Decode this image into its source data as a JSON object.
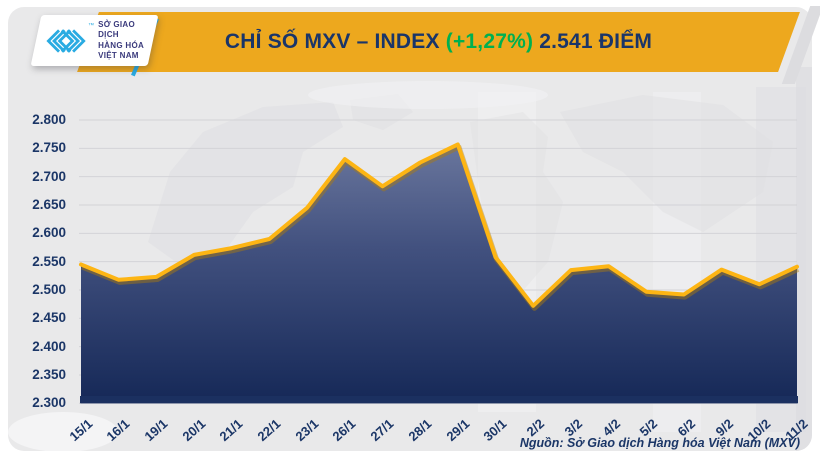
{
  "header": {
    "banner_color": "#EDA81E",
    "title_main": "CHỈ SỐ MXV – INDEX",
    "title_change": "(+1,27%)",
    "title_points": "2.541 ĐIỂM",
    "title_color": "#1A3569",
    "change_color": "#00B050",
    "logo": {
      "icon": "mxv-chevrons-icon",
      "tm": "™",
      "line1": "SỞ GIAO DỊCH",
      "line2": "HÀNG HÓA",
      "line3": "VIỆT NAM",
      "brand_cyan": "#29ABE2",
      "text_color": "#3A3A7C"
    }
  },
  "footer": {
    "source": "Nguồn: Sở Giao dịch Hàng hóa Việt Nam (MXV)"
  },
  "chart_data": {
    "type": "area",
    "title": "CHỈ SỐ MXV – INDEX (+1,27%) 2.541 ĐIỂM",
    "categories": [
      "15/1",
      "16/1",
      "19/1",
      "20/1",
      "21/1",
      "22/1",
      "23/1",
      "26/1",
      "27/1",
      "28/1",
      "29/1",
      "30/1",
      "2/2",
      "3/2",
      "4/2",
      "5/2",
      "6/2",
      "9/2",
      "10/2",
      "11/2"
    ],
    "values": [
      2545,
      2518,
      2523,
      2562,
      2574,
      2590,
      2645,
      2731,
      2683,
      2725,
      2757,
      2558,
      2472,
      2535,
      2542,
      2497,
      2492,
      2536,
      2510,
      2541
    ],
    "last_value_label": "2.541",
    "change_pct_label": "+1,27%",
    "ylim": [
      2300,
      2800
    ],
    "ytick_step": 50,
    "ytick_labels": [
      "2.800",
      "2.750",
      "2.700",
      "2.650",
      "2.600",
      "2.550",
      "2.500",
      "2.450",
      "2.400",
      "2.350",
      "2.300"
    ],
    "xlabel": "",
    "ylabel": "",
    "grid": "horizontal",
    "legend": "none",
    "gridline_color": "#d3d3d7",
    "line_color": "#FDB514",
    "line_shadow_color": "#B07C08",
    "area_gradient_top": "#737FA4",
    "area_gradient_mid": "#42517F",
    "area_gradient_bottom": "#152857",
    "axis_bar_color": "#1B3060",
    "label_color": "#1B3667"
  }
}
